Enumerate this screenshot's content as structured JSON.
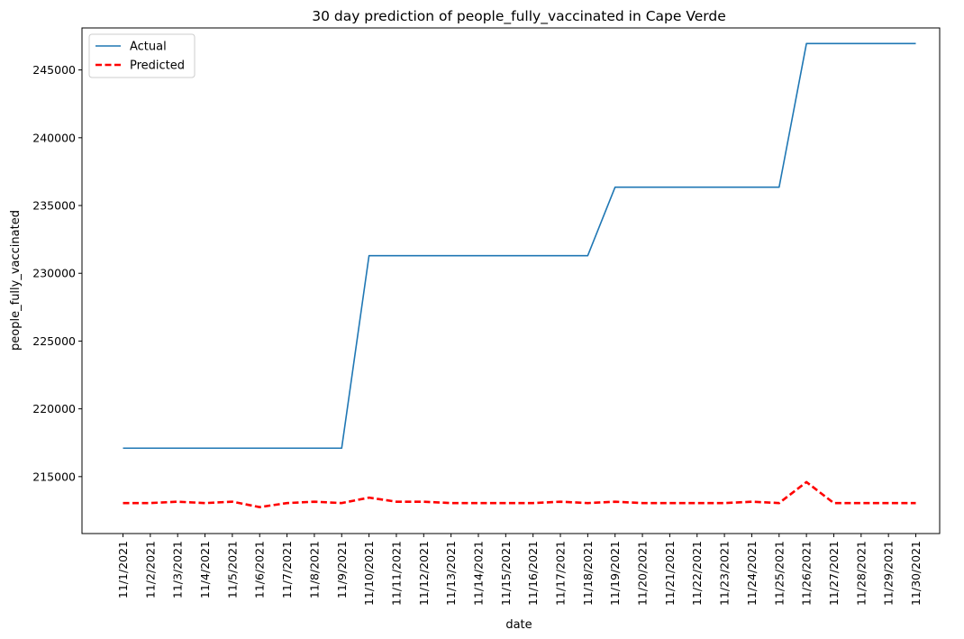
{
  "chart_data": {
    "type": "line",
    "title": "30 day prediction of people_fully_vaccinated in Cape Verde",
    "xlabel": "date",
    "ylabel": "people_fully_vaccinated",
    "categories": [
      "11/1/2021",
      "11/2/2021",
      "11/3/2021",
      "11/4/2021",
      "11/5/2021",
      "11/6/2021",
      "11/7/2021",
      "11/8/2021",
      "11/9/2021",
      "11/10/2021",
      "11/11/2021",
      "11/12/2021",
      "11/13/2021",
      "11/14/2021",
      "11/15/2021",
      "11/16/2021",
      "11/17/2021",
      "11/18/2021",
      "11/19/2021",
      "11/20/2021",
      "11/21/2021",
      "11/22/2021",
      "11/23/2021",
      "11/24/2021",
      "11/25/2021",
      "11/26/2021",
      "11/27/2021",
      "11/28/2021",
      "11/29/2021",
      "11/30/2021"
    ],
    "y_ticks": [
      215000,
      220000,
      225000,
      230000,
      235000,
      240000,
      245000
    ],
    "ylim": [
      210800,
      248100
    ],
    "grid": false,
    "legend_position": "top-left",
    "series": [
      {
        "name": "Actual",
        "color": "#1f77b4",
        "style": "solid",
        "values": [
          217100,
          217100,
          217100,
          217100,
          217100,
          217100,
          217100,
          217100,
          217100,
          231300,
          231300,
          231300,
          231300,
          231300,
          231300,
          231300,
          231300,
          231300,
          236350,
          236350,
          236350,
          236350,
          236350,
          236350,
          236350,
          246950,
          246950,
          246950,
          246950,
          246950
        ]
      },
      {
        "name": "Predicted",
        "color": "#ff0000",
        "style": "dashed",
        "values": [
          213050,
          213050,
          213150,
          213050,
          213150,
          212750,
          213050,
          213150,
          213050,
          213450,
          213150,
          213150,
          213050,
          213050,
          213050,
          213050,
          213150,
          213050,
          213150,
          213050,
          213050,
          213050,
          213050,
          213150,
          213050,
          214600,
          213050,
          213050,
          213050,
          213050
        ]
      }
    ]
  }
}
